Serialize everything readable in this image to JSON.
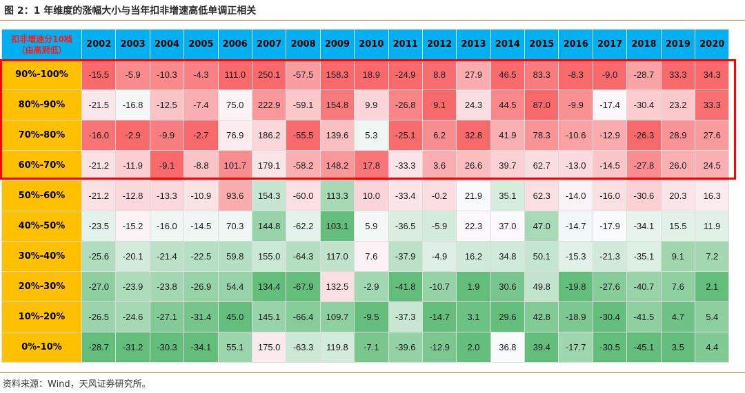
{
  "title": "图 2：1 年维度的涨幅大小与当年扣非增速高低单调正相关",
  "source": "资料来源：Wind，天风证券研究所。",
  "chart_data": {
    "type": "heatmap",
    "corner_label_line1": "扣非增速分10档",
    "corner_label_line2": "（由高到低）",
    "columns": [
      "2002",
      "2003",
      "2004",
      "2005",
      "2006",
      "2007",
      "2008",
      "2009",
      "2010",
      "2011",
      "2012",
      "2013",
      "2014",
      "2015",
      "2016",
      "2017",
      "2018",
      "2019",
      "2020"
    ],
    "rows": [
      {
        "label": "90%-100%",
        "values": [
          -15.5,
          -5.9,
          -10.3,
          -4.3,
          111.0,
          250.1,
          -57.5,
          158.3,
          18.9,
          -24.9,
          8.8,
          27.9,
          46.5,
          83.3,
          -8.3,
          -9.0,
          -28.7,
          33.3,
          34.3
        ]
      },
      {
        "label": "80%-90%",
        "values": [
          -21.5,
          -16.8,
          -12.5,
          -7.4,
          75.0,
          222.9,
          -59.1,
          154.8,
          9.9,
          -26.8,
          9.1,
          24.3,
          44.5,
          87.0,
          -9.9,
          -17.4,
          -30.4,
          23.2,
          33.3
        ]
      },
      {
        "label": "70%-80%",
        "values": [
          -16.0,
          -2.9,
          -9.9,
          -2.7,
          76.9,
          186.2,
          -55.5,
          139.6,
          5.3,
          -25.1,
          6.2,
          32.8,
          41.9,
          78.3,
          -10.6,
          -12.9,
          -26.3,
          28.9,
          27.6
        ]
      },
      {
        "label": "60%-70%",
        "values": [
          -21.2,
          -11.9,
          -9.1,
          -8.8,
          101.7,
          179.1,
          -58.2,
          148.2,
          17.8,
          -33.3,
          3.6,
          26.6,
          39.7,
          62.7,
          -13.0,
          -14.5,
          -27.8,
          26.0,
          24.5
        ]
      },
      {
        "label": "50%-60%",
        "values": [
          -21.2,
          -12.8,
          -13.3,
          -10.9,
          93.6,
          154.3,
          -60.0,
          113.3,
          10.0,
          -33.4,
          -0.2,
          21.9,
          35.1,
          62.3,
          -14.0,
          -16.0,
          -30.6,
          20.3,
          16.3
        ]
      },
      {
        "label": "40%-50%",
        "values": [
          -23.5,
          -15.2,
          -16.0,
          -14.5,
          70.3,
          144.8,
          -62.2,
          103.1,
          5.9,
          -36.5,
          -5.9,
          22.3,
          37.0,
          47.0,
          -14.7,
          -17.9,
          -34.1,
          15.5,
          11.9
        ]
      },
      {
        "label": "30%-40%",
        "values": [
          -25.6,
          -20.1,
          -21.4,
          -22.5,
          59.8,
          155.0,
          -64.3,
          117.0,
          7.6,
          -37.9,
          -4.9,
          16.2,
          34.8,
          50.1,
          -15.3,
          -21.3,
          -35.1,
          9.1,
          7.2
        ]
      },
      {
        "label": "20%-30%",
        "values": [
          -27.0,
          -23.9,
          -23.8,
          -26.9,
          54.4,
          134.4,
          -67.9,
          132.5,
          -2.9,
          -41.8,
          -10.7,
          1.9,
          30.6,
          49.8,
          -19.8,
          -27.6,
          -40.7,
          7.6,
          2.1
        ]
      },
      {
        "label": "10%-20%",
        "values": [
          -26.5,
          -24.6,
          -27.1,
          -31.4,
          45.0,
          145.1,
          -66.4,
          109.7,
          -9.5,
          -37.3,
          -14.7,
          3.1,
          29.6,
          42.8,
          -18.9,
          -30.4,
          -41.5,
          4.7,
          5.4
        ]
      },
      {
        "label": "0%-10%",
        "values": [
          -28.7,
          -31.2,
          -30.3,
          -34.1,
          55.1,
          175.0,
          -63.3,
          119.8,
          -7.1,
          -39.6,
          -12.9,
          2.0,
          36.8,
          39.4,
          -17.7,
          -30.5,
          -45.1,
          3.5,
          4.4
        ]
      }
    ],
    "highlighted_rows": [
      "90%-100%",
      "80%-90%",
      "70%-80%",
      "60%-70%"
    ],
    "colors": {
      "header_bg": "#00b0f0",
      "row_label_bg": "#ffc000",
      "high": "#f8696b",
      "mid": "#fcfcff",
      "low": "#63be7b",
      "highlight_border": "#ff0000",
      "corner_text": "#ff1a1a"
    }
  }
}
